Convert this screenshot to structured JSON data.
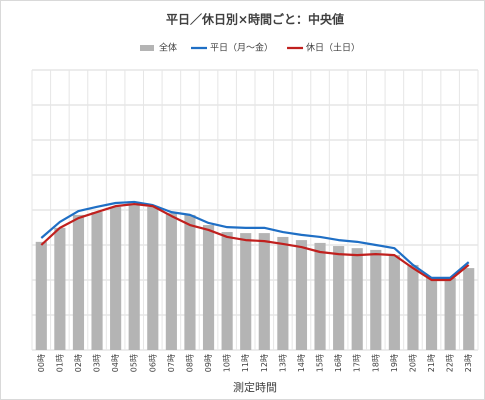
{
  "chart_data": {
    "type": "bar_line",
    "title": "平日／休日別×時間ごと：中央値",
    "x_label": "測定時間",
    "categories": [
      "00時",
      "01時",
      "02時",
      "03時",
      "04時",
      "05時",
      "06時",
      "07時",
      "08時",
      "09時",
      "10時",
      "11時",
      "12時",
      "13時",
      "14時",
      "15時",
      "16時",
      "17時",
      "18時",
      "19時",
      "20時",
      "21時",
      "22時",
      "23時"
    ],
    "series": [
      {
        "name": "全体",
        "kind": "bar",
        "color": "#b4b4b4",
        "values": [
          3.09,
          3.49,
          3.86,
          3.94,
          4.09,
          4.14,
          4.09,
          3.91,
          3.86,
          3.57,
          3.37,
          3.34,
          3.34,
          3.23,
          3.14,
          3.06,
          2.97,
          2.91,
          2.86,
          2.71,
          2.43,
          2.06,
          2.06,
          2.34
        ]
      },
      {
        "name": "平日（月～金）",
        "kind": "line",
        "color": "#1f6fc5",
        "values": [
          3.2,
          3.66,
          3.97,
          4.09,
          4.2,
          4.23,
          4.14,
          3.94,
          3.86,
          3.63,
          3.51,
          3.49,
          3.49,
          3.37,
          3.29,
          3.23,
          3.14,
          3.09,
          3.0,
          2.91,
          2.43,
          2.06,
          2.06,
          2.51
        ]
      },
      {
        "name": "休日（土日）",
        "kind": "line",
        "color": "#c0201e",
        "values": [
          3.0,
          3.49,
          3.77,
          3.94,
          4.11,
          4.17,
          4.11,
          3.83,
          3.57,
          3.43,
          3.23,
          3.14,
          3.11,
          3.03,
          2.94,
          2.8,
          2.74,
          2.71,
          2.74,
          2.71,
          2.34,
          2.0,
          2.0,
          2.43
        ]
      }
    ],
    "ylim": [
      0,
      8
    ],
    "yticks": [
      0,
      1,
      2,
      3,
      4,
      5,
      6,
      7,
      8
    ],
    "show_ytick_labels": false,
    "grid": true,
    "legend": "top"
  }
}
